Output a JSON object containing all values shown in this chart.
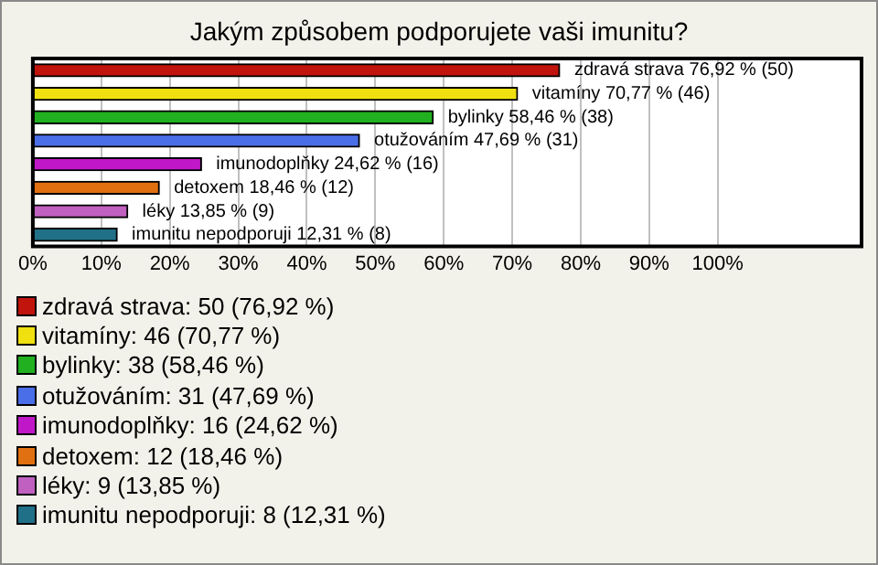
{
  "chart_data": {
    "type": "bar",
    "orientation": "horizontal",
    "title": "Jakým způsobem podporujete vaši imunitu?",
    "categories": [
      null,
      null,
      null,
      null,
      null,
      null,
      null,
      null
    ],
    "values": [
      76.92,
      70.77,
      58.46,
      47.69,
      24.62,
      18.46,
      13.85,
      12.31
    ],
    "colors": [
      "#c0140c",
      "#f0e010",
      "#20b020",
      "#4a6ee8",
      "#c018c8",
      "#e07010",
      "#c060c0",
      "#207088"
    ],
    "value_labels": [
      "zdravá strava 76,92 % (50)",
      "vitamíny 70,77 % (46)",
      "bylinky 58,46 % (38)",
      "otužováním 47,69 % (31)",
      "imunodoplňky 24,62 % (16)",
      "detoxem 18,46 % (12)",
      "léky 13,85 % (9)",
      "imunitu nepodporuji 12,31 % (8)"
    ],
    "xlim": [
      0,
      121
    ],
    "xticks": [
      {
        "value": 0,
        "label": "0%"
      },
      {
        "value": 10,
        "label": "10%"
      },
      {
        "value": 20,
        "label": "20%"
      },
      {
        "value": 30,
        "label": "30%"
      },
      {
        "value": 40,
        "label": "40%"
      },
      {
        "value": 50,
        "label": "50%"
      },
      {
        "value": 60,
        "label": "60%"
      },
      {
        "value": 70,
        "label": "70%"
      },
      {
        "value": 80,
        "label": "80%"
      },
      {
        "value": 90,
        "label": "90%"
      },
      {
        "value": 100,
        "label": "100%"
      }
    ],
    "grid": "x",
    "annotations": [
      "zdravá strava: 50 (76,92 %)",
      "vitamíny: 46 (70,77 %)",
      "bylinky: 38 (58,46 %)",
      "otužováním: 31 (47,69 %)",
      "imunodoplňky: 16 (24,62 %)",
      "detoxem: 12 (18,46 %)",
      "léky: 9 (13,85 %)",
      "imunitu nepodporuji: 8 (12,31 %)"
    ]
  }
}
